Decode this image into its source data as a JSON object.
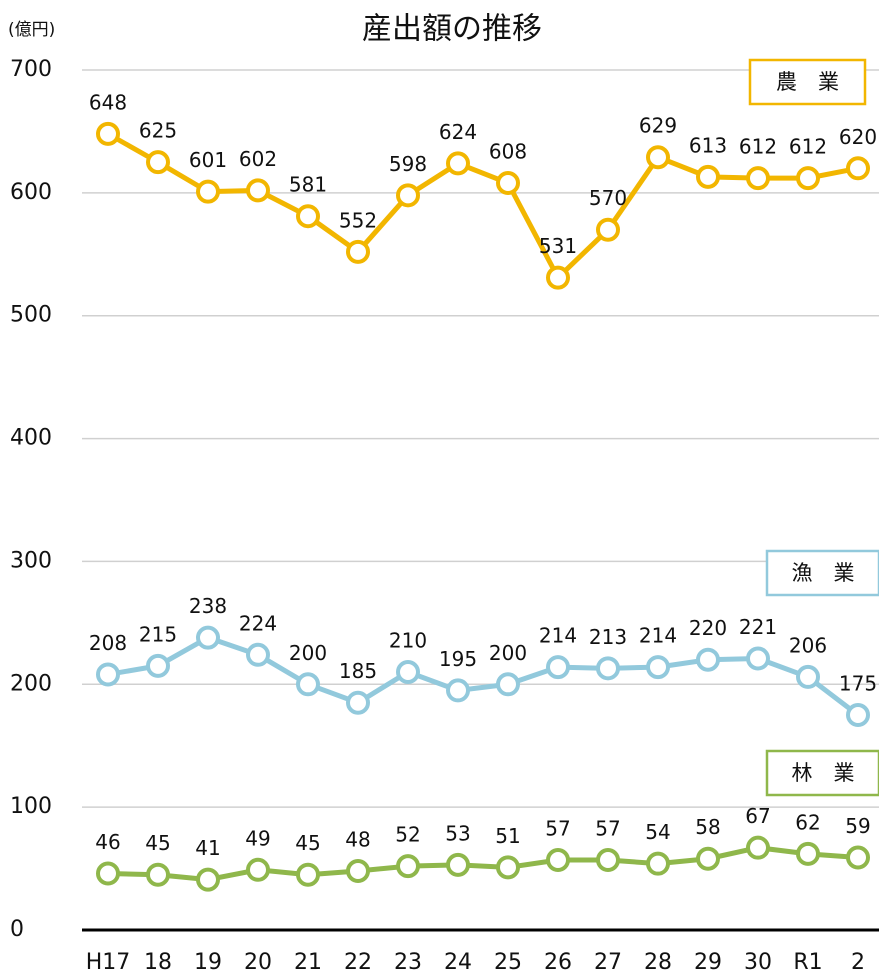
{
  "chart_data": {
    "type": "line",
    "title": "産出額の推移",
    "y_axis_label": "(億円)",
    "categories": [
      "H17",
      "18",
      "19",
      "20",
      "21",
      "22",
      "23",
      "24",
      "25",
      "26",
      "27",
      "28",
      "29",
      "30",
      "R1",
      "2"
    ],
    "ylim": [
      0,
      700
    ],
    "yticks": [
      0,
      100,
      200,
      300,
      400,
      500,
      600,
      700
    ],
    "grid": true,
    "series": [
      {
        "name": "農　業",
        "color": "#f2b600",
        "values": [
          648,
          625,
          601,
          602,
          581,
          552,
          598,
          624,
          608,
          531,
          570,
          629,
          613,
          612,
          612,
          620
        ]
      },
      {
        "name": "漁　業",
        "color": "#92c9dc",
        "values": [
          208,
          215,
          238,
          224,
          200,
          185,
          210,
          195,
          200,
          214,
          213,
          214,
          220,
          221,
          206,
          175
        ]
      },
      {
        "name": "林　業",
        "color": "#8fb74b",
        "values": [
          46,
          45,
          41,
          49,
          45,
          48,
          52,
          53,
          51,
          57,
          57,
          54,
          58,
          67,
          62,
          59
        ]
      }
    ]
  }
}
